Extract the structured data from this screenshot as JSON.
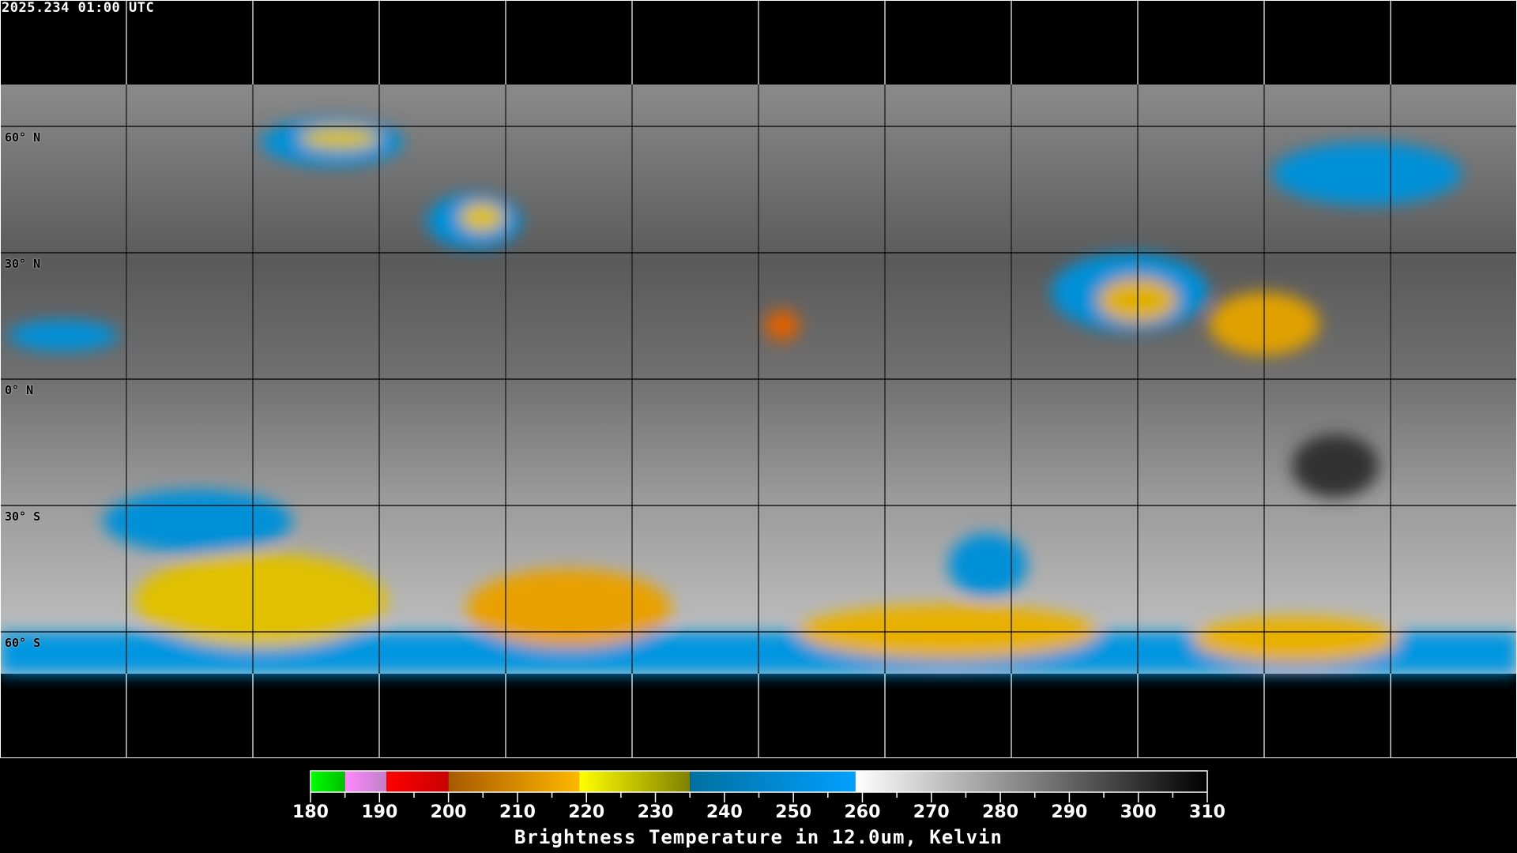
{
  "header": {
    "timestamp": "2025.234 01:00 UTC"
  },
  "map": {
    "projection": "equirectangular",
    "lon_grid_step_deg": 30,
    "lat_grid_step_deg": 30,
    "data_coverage_lat": [
      70,
      -70
    ],
    "lat_labels": [
      {
        "lat": 60,
        "text": "60° N"
      },
      {
        "lat": 30,
        "text": "30° N"
      },
      {
        "lat": 0,
        "text": "0° N"
      },
      {
        "lat": -30,
        "text": "30° S"
      },
      {
        "lat": -60,
        "text": "60° S"
      }
    ]
  },
  "colorbar": {
    "min": 180,
    "max": 310,
    "ticks": [
      "180",
      "190",
      "200",
      "210",
      "220",
      "230",
      "240",
      "250",
      "260",
      "270",
      "280",
      "290",
      "300",
      "310"
    ],
    "title": "Brightness Temperature in 12.0um, Kelvin",
    "segments": [
      {
        "from": 180,
        "to": 185,
        "start": "#00ff00",
        "end": "#00c000"
      },
      {
        "from": 185,
        "to": 191,
        "start": "#ff88ff",
        "end": "#c080c8"
      },
      {
        "from": 191,
        "to": 200,
        "start": "#ff0000",
        "end": "#c80000"
      },
      {
        "from": 200,
        "to": 219,
        "start": "#a85800",
        "end": "#ffb800"
      },
      {
        "from": 219,
        "to": 235,
        "start": "#ffff00",
        "end": "#808000"
      },
      {
        "from": 235,
        "to": 259,
        "start": "#0070a0",
        "end": "#00a0ff"
      },
      {
        "from": 259,
        "to": 310,
        "start": "#ffffff",
        "end": "#000000"
      }
    ]
  }
}
